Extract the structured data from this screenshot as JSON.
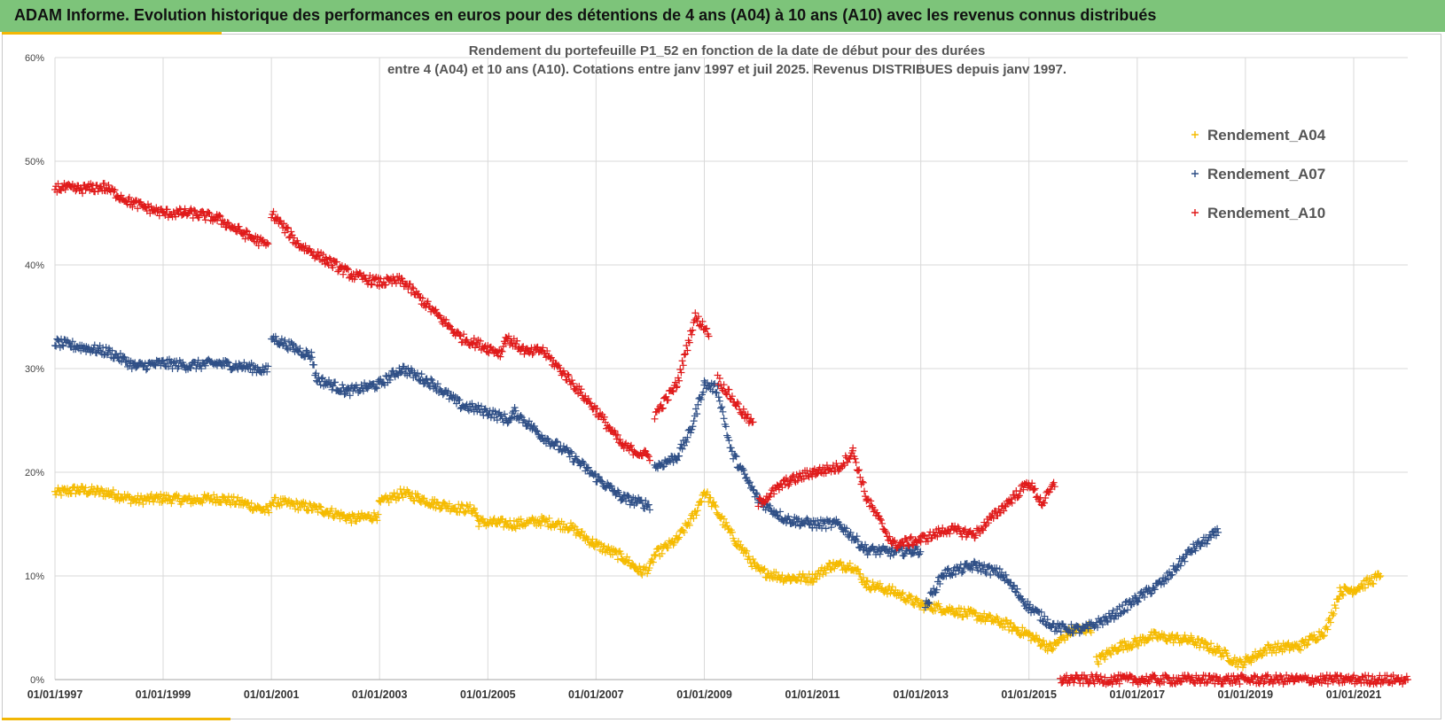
{
  "banner": {
    "title": "ADAM Informe. Evolution historique des performances en euros pour des détentions de 4 ans (A04) à 10 ans (A10) avec les revenus connus distribués"
  },
  "colors": {
    "banner_bg": "#7dc47a",
    "accent": "#f2b705",
    "A04": "#f5bb00",
    "A07": "#2f4f86",
    "A10": "#e01a1a"
  },
  "chart_data": {
    "type": "scatter",
    "marker": "plus",
    "title_line1": "Rendement du portefeuille P1_52 en fonction de la date de début pour des durées",
    "title_line2": "entre 4 (A04) et 10 ans (A10). Cotations  entre janv 1997 et juil 2025. Revenus DISTRIBUES depuis janv 1997.",
    "xlabel": "",
    "ylabel": "",
    "x_range": [
      "1997-01-01",
      "2022-01-01"
    ],
    "x_ticks": [
      "01/01/1997",
      "01/01/1999",
      "01/01/2001",
      "01/01/2003",
      "01/01/2005",
      "01/01/2007",
      "01/01/2009",
      "01/01/2011",
      "01/01/2013",
      "01/01/2015",
      "01/01/2017",
      "01/01/2019",
      "01/01/2021"
    ],
    "y_range": [
      0,
      60
    ],
    "y_ticks": [
      "0%",
      "10%",
      "20%",
      "30%",
      "40%",
      "50%",
      "60%"
    ],
    "grid": true,
    "legend_position": "top-right",
    "series": [
      {
        "name": "Rendement_A04",
        "color": "#f5bb00",
        "points": [
          [
            "1997-01-01",
            18.0
          ],
          [
            "1997-06-01",
            18.3
          ],
          [
            "1998-01-01",
            18.0
          ],
          [
            "1998-07-01",
            17.3
          ],
          [
            "1999-01-01",
            17.5
          ],
          [
            "1999-07-01",
            17.3
          ],
          [
            "2000-01-01",
            17.5
          ],
          [
            "2000-07-01",
            17.0
          ],
          [
            "2000-12-15",
            16.2
          ],
          [
            "2001-01-01",
            17.2
          ],
          [
            "2001-07-01",
            16.8
          ],
          [
            "2002-01-01",
            16.3
          ],
          [
            "2002-07-01",
            15.5
          ],
          [
            "2002-12-15",
            15.8
          ],
          [
            "2003-01-01",
            17.0
          ],
          [
            "2003-06-01",
            18.0
          ],
          [
            "2003-10-01",
            17.5
          ],
          [
            "2004-01-01",
            17.0
          ],
          [
            "2004-07-01",
            16.5
          ],
          [
            "2004-10-01",
            16.4
          ],
          [
            "2004-11-01",
            15.2
          ],
          [
            "2005-07-01",
            15.0
          ],
          [
            "2006-01-01",
            15.3
          ],
          [
            "2006-07-01",
            14.8
          ],
          [
            "2007-01-01",
            13.0
          ],
          [
            "2007-07-01",
            11.8
          ],
          [
            "2007-11-01",
            10.4
          ],
          [
            "2008-01-01",
            10.8
          ],
          [
            "2008-02-01",
            12.0
          ],
          [
            "2008-07-01",
            13.5
          ],
          [
            "2008-11-01",
            16.0
          ],
          [
            "2009-01-01",
            18.2
          ],
          [
            "2009-07-01",
            14.0
          ],
          [
            "2010-01-01",
            10.5
          ],
          [
            "2010-07-01",
            9.8
          ],
          [
            "2011-01-01",
            9.8
          ],
          [
            "2011-05-01",
            11.0
          ],
          [
            "2011-10-01",
            11.0
          ],
          [
            "2012-01-01",
            9.2
          ],
          [
            "2012-07-01",
            8.5
          ],
          [
            "2013-01-01",
            7.2
          ],
          [
            "2013-07-01",
            6.8
          ],
          [
            "2014-01-01",
            6.2
          ],
          [
            "2014-07-01",
            5.5
          ],
          [
            "2015-01-01",
            4.3
          ],
          [
            "2015-06-01",
            3.0
          ],
          [
            "2015-10-01",
            4.6
          ],
          [
            "2016-03-01",
            5.0
          ],
          [
            "2016-04-01",
            1.8
          ],
          [
            "2016-09-01",
            3.2
          ],
          [
            "2017-01-01",
            3.6
          ],
          [
            "2017-04-01",
            4.2
          ],
          [
            "2018-01-01",
            3.8
          ],
          [
            "2018-07-01",
            2.8
          ],
          [
            "2018-12-01",
            1.5
          ],
          [
            "2019-06-01",
            3.0
          ],
          [
            "2020-01-01",
            3.2
          ],
          [
            "2020-07-01",
            4.8
          ],
          [
            "2020-10-01",
            8.5
          ],
          [
            "2021-01-01",
            8.7
          ],
          [
            "2021-07-01",
            10.0
          ]
        ]
      },
      {
        "name": "Rendement_A07",
        "color": "#2f4f86",
        "points": [
          [
            "1997-01-01",
            32.5
          ],
          [
            "1997-08-01",
            32.0
          ],
          [
            "1998-01-01",
            31.6
          ],
          [
            "1998-07-01",
            30.2
          ],
          [
            "1999-01-01",
            30.5
          ],
          [
            "1999-07-01",
            30.3
          ],
          [
            "2000-01-01",
            30.5
          ],
          [
            "2000-07-01",
            30.2
          ],
          [
            "2000-12-15",
            29.8
          ],
          [
            "2001-01-01",
            33.0
          ],
          [
            "2001-06-01",
            32.0
          ],
          [
            "2001-10-01",
            31.2
          ],
          [
            "2001-11-01",
            29.0
          ],
          [
            "2002-06-01",
            27.8
          ],
          [
            "2003-01-01",
            28.5
          ],
          [
            "2003-06-01",
            30.0
          ],
          [
            "2004-01-01",
            28.5
          ],
          [
            "2004-07-01",
            26.5
          ],
          [
            "2005-01-01",
            25.8
          ],
          [
            "2005-06-01",
            25.0
          ],
          [
            "2005-07-01",
            25.8
          ],
          [
            "2006-01-01",
            23.5
          ],
          [
            "2006-07-01",
            21.8
          ],
          [
            "2007-01-01",
            19.5
          ],
          [
            "2007-07-01",
            17.5
          ],
          [
            "2008-01-01",
            16.8
          ],
          [
            "2008-02-01",
            20.5
          ],
          [
            "2008-07-01",
            21.5
          ],
          [
            "2008-10-01",
            24.0
          ],
          [
            "2009-01-01",
            28.5
          ],
          [
            "2009-04-01",
            28.0
          ],
          [
            "2009-07-01",
            22.0
          ],
          [
            "2010-01-01",
            17.3
          ],
          [
            "2010-07-01",
            15.5
          ],
          [
            "2011-01-01",
            15.0
          ],
          [
            "2011-07-01",
            15.0
          ],
          [
            "2012-01-01",
            12.5
          ],
          [
            "2012-07-01",
            12.3
          ],
          [
            "2013-01-01",
            12.5
          ],
          [
            "2013-02-01",
            7.0
          ],
          [
            "2013-06-01",
            10.2
          ],
          [
            "2014-01-01",
            11.0
          ],
          [
            "2014-07-01",
            10.2
          ],
          [
            "2015-01-01",
            7.0
          ],
          [
            "2015-07-01",
            5.0
          ],
          [
            "2016-01-01",
            4.8
          ],
          [
            "2016-07-01",
            6.0
          ],
          [
            "2017-01-01",
            7.8
          ],
          [
            "2017-07-01",
            9.5
          ],
          [
            "2018-01-01",
            12.5
          ],
          [
            "2018-07-01",
            14.2
          ]
        ]
      },
      {
        "name": "Rendement_A10",
        "color": "#e01a1a",
        "points": [
          [
            "1997-01-01",
            47.5
          ],
          [
            "1997-06-01",
            47.3
          ],
          [
            "1997-12-01",
            47.5
          ],
          [
            "1998-06-01",
            46.0
          ],
          [
            "1999-01-01",
            45.0
          ],
          [
            "1999-07-01",
            45.0
          ],
          [
            "2000-01-01",
            44.5
          ],
          [
            "2000-07-01",
            43.0
          ],
          [
            "2000-12-15",
            41.8
          ],
          [
            "2001-01-01",
            45.0
          ],
          [
            "2001-07-01",
            42.0
          ],
          [
            "2002-01-01",
            40.5
          ],
          [
            "2002-07-01",
            39.0
          ],
          [
            "2003-01-01",
            38.3
          ],
          [
            "2003-06-01",
            38.5
          ],
          [
            "2004-01-01",
            35.5
          ],
          [
            "2004-07-01",
            33.0
          ],
          [
            "2005-01-01",
            32.0
          ],
          [
            "2005-04-01",
            31.5
          ],
          [
            "2005-05-01",
            33.0
          ],
          [
            "2005-10-01",
            31.5
          ],
          [
            "2006-01-01",
            31.8
          ],
          [
            "2006-07-01",
            29.0
          ],
          [
            "2007-01-01",
            26.0
          ],
          [
            "2007-07-01",
            22.5
          ],
          [
            "2008-01-01",
            21.5
          ],
          [
            "2008-02-01",
            25.5
          ],
          [
            "2008-07-01",
            28.5
          ],
          [
            "2008-11-01",
            35.0
          ],
          [
            "2009-02-01",
            33.5
          ],
          [
            "2009-04-01",
            29.0
          ],
          [
            "2009-10-01",
            25.5
          ],
          [
            "2009-12-01",
            24.5
          ],
          [
            "2010-01-01",
            17.0
          ],
          [
            "2010-07-01",
            19.0
          ],
          [
            "2011-01-01",
            20.0
          ],
          [
            "2011-07-01",
            20.5
          ],
          [
            "2011-10-01",
            22.0
          ],
          [
            "2012-01-01",
            17.5
          ],
          [
            "2012-07-01",
            13.0
          ],
          [
            "2013-01-01",
            13.5
          ],
          [
            "2013-07-01",
            14.5
          ],
          [
            "2014-01-01",
            14.0
          ],
          [
            "2014-07-01",
            16.5
          ],
          [
            "2015-01-01",
            19.0
          ],
          [
            "2015-04-01",
            17.0
          ],
          [
            "2015-07-01",
            19.0
          ],
          [
            "2015-08-01",
            0.0
          ],
          [
            "2022-01-01",
            0.0
          ]
        ]
      }
    ]
  }
}
